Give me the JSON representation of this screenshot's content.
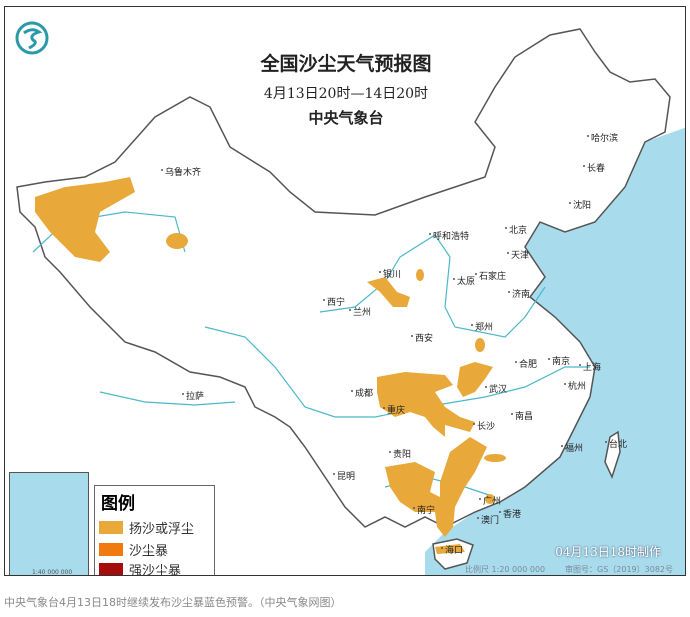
{
  "map": {
    "title": "全国沙尘天气预报图",
    "period": "4月13日20时—14日20时",
    "agency": "中央气象台",
    "made_time": "04月13日18时制作",
    "scale": "比例尺 1:20 000 000",
    "approval": "审图号：GS（2019）3082号",
    "inset_scale": "1:40 000 000",
    "cities": [
      "乌鲁木齐",
      "哈尔滨",
      "长春",
      "沈阳",
      "北京",
      "天津",
      "呼和浩特",
      "石家庄",
      "太原",
      "济南",
      "银川",
      "西宁",
      "兰州",
      "郑州",
      "西安",
      "合肥",
      "南京",
      "上海",
      "武汉",
      "杭州",
      "成都",
      "重庆",
      "长沙",
      "南昌",
      "拉萨",
      "贵阳",
      "福州",
      "台北",
      "昆明",
      "南宁",
      "广州",
      "香港",
      "澳门",
      "海口"
    ],
    "legend": {
      "title": "图例",
      "items": [
        {
          "label": "扬沙或浮尘",
          "color": "#e8a93a"
        },
        {
          "label": "沙尘暴",
          "color": "#f07a10"
        },
        {
          "label": "强沙尘暴",
          "color": "#a50d0d"
        }
      ]
    },
    "colors": {
      "sea": "#a8dced",
      "land": "#ffffff",
      "river": "#4bb8c8",
      "border": "#555555"
    }
  },
  "caption": "中央气象台4月13日18时继续发布沙尘暴蓝色预警。（中央气象网图）"
}
